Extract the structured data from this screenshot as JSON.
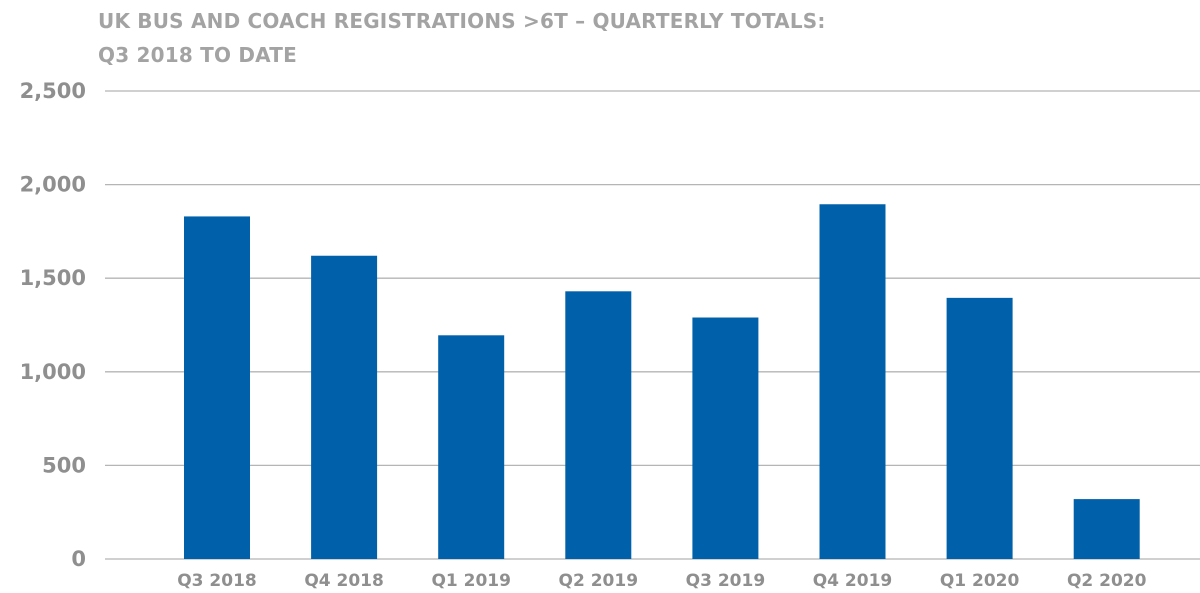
{
  "chart_data": {
    "type": "bar",
    "title_lines": [
      "UK BUS AND COACH REGISTRATIONS >6T – QUARTERLY TOTALS:",
      "Q3 2018 TO DATE"
    ],
    "categories": [
      "Q3 2018",
      "Q4 2018",
      "Q1 2019",
      "Q2 2019",
      "Q3 2019",
      "Q4 2019",
      "Q1 2020",
      "Q2 2020"
    ],
    "values": [
      1830,
      1620,
      1195,
      1430,
      1290,
      1895,
      1395,
      320
    ],
    "ylim": [
      0,
      2500
    ],
    "yticks": [
      0,
      500,
      1000,
      1500,
      2000,
      2500
    ],
    "ytick_labels": [
      "0",
      "500",
      "1,000",
      "1,500",
      "2,000",
      "2,500"
    ],
    "grid": true,
    "bar_color": "#0060a9"
  }
}
